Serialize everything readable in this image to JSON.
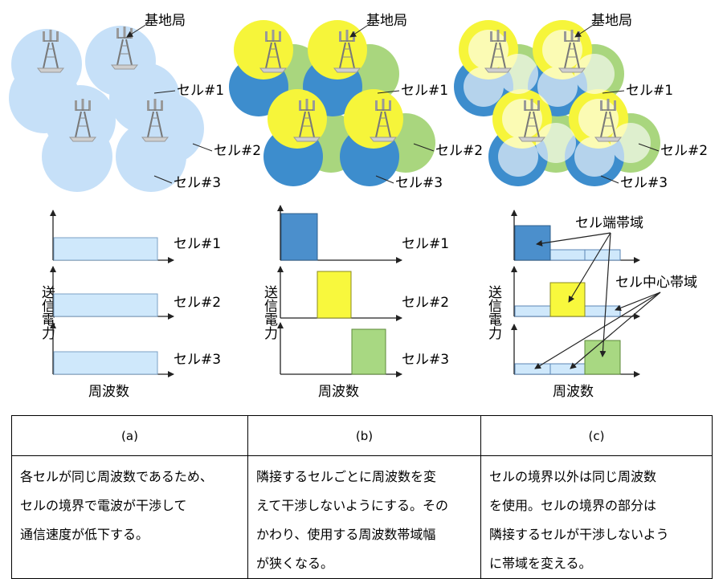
{
  "labels": {
    "base_station": "基地局",
    "cell1": "セル#1",
    "cell2": "セル#2",
    "cell3": "セル#3",
    "y_axis": "送信電力",
    "x_axis": "周波数",
    "edge_band": "セル端帯域",
    "center_band": "セル中心帯域"
  },
  "colors": {
    "cell_light_blue": "#b4d6f6",
    "cell_dark_blue": "#3d8dcd",
    "cell_yellow": "#f6f53a",
    "cell_green": "#a9d67e",
    "band_light_blue": "#cfe8fb",
    "band_dark_blue": "#4b8fcc",
    "band_yellow": "#f8f83d",
    "band_green": "#a8d882"
  },
  "table": {
    "headers": [
      "(a)",
      "(b)",
      "(c)"
    ],
    "descriptions": [
      [
        "各セルが同じ周波数であるため、",
        "セルの境界で電波が干渉して",
        "通信速度が低下する。"
      ],
      [
        "隣接するセルごとに周波数を変",
        "えて干渉しないようにする。その",
        "かわり、使用する周波数帯域幅",
        "が狭くなる。"
      ],
      [
        "セルの境界以外は同じ周波数",
        "を使用。セルの境界の部分は",
        "隣接するセルが干渉しないよう",
        "に帯域を変える。"
      ]
    ]
  }
}
